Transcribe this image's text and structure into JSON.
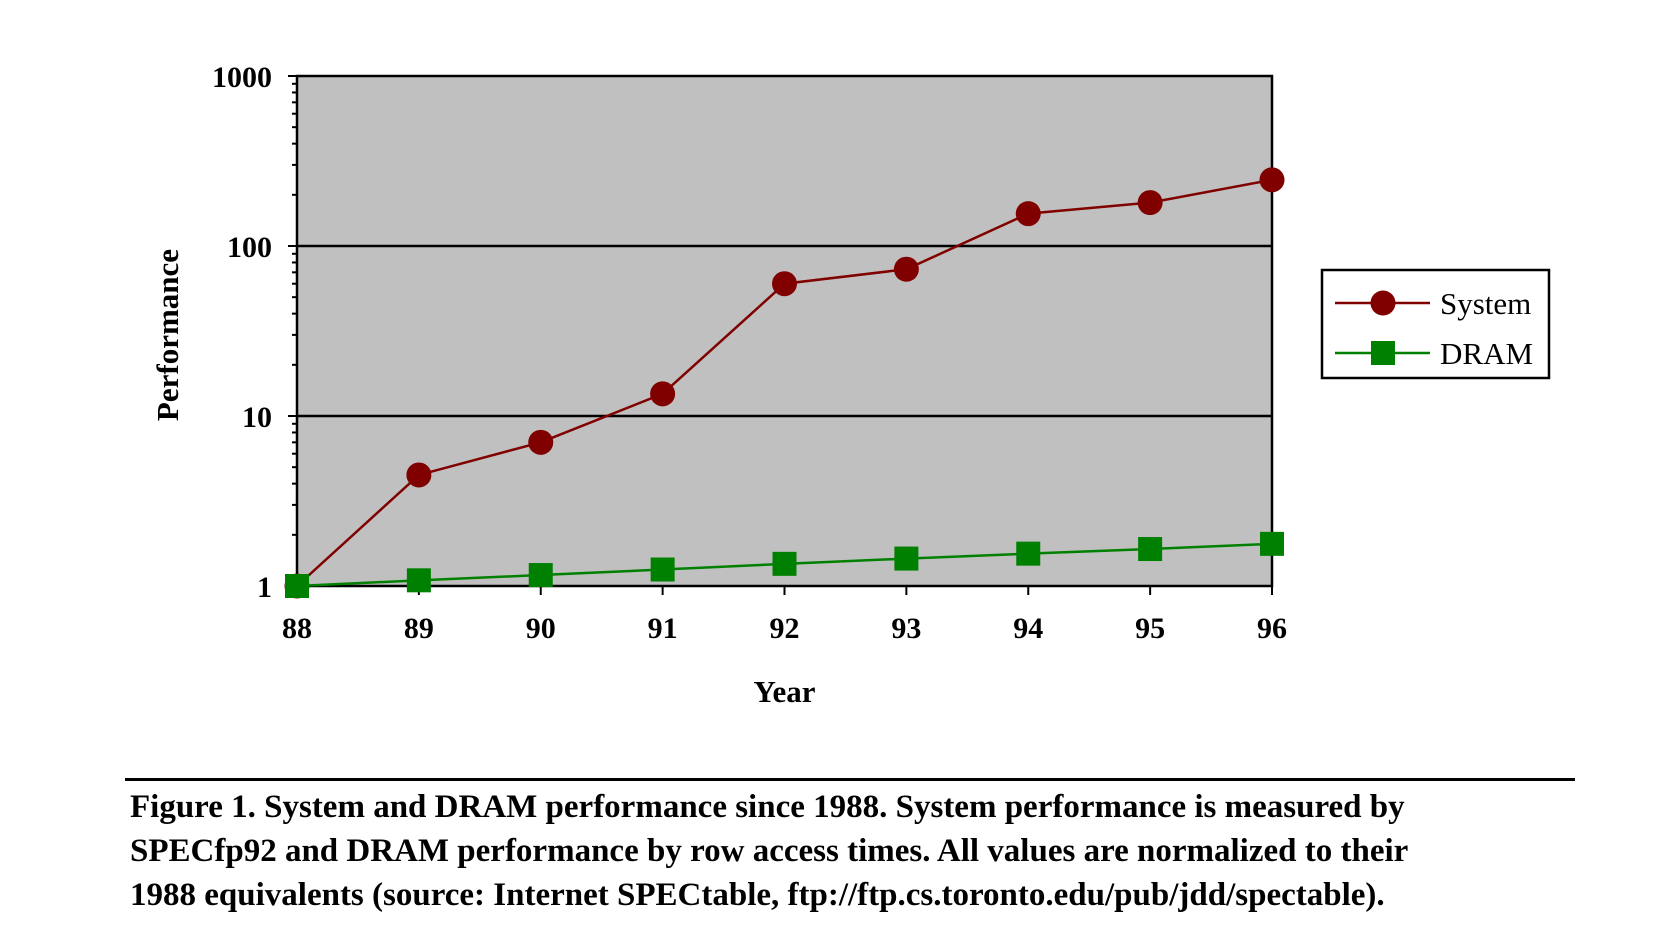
{
  "chart_data": {
    "type": "line",
    "xlabel": "Year",
    "ylabel": "Performance",
    "y_scale": "log",
    "ylim": [
      1,
      1000
    ],
    "y_ticks": [
      "1",
      "10",
      "100",
      "1000"
    ],
    "categories": [
      "88",
      "89",
      "90",
      "91",
      "92",
      "93",
      "94",
      "95",
      "96"
    ],
    "grid": "horizontal major lines at 10 and 100",
    "legend_position": "right",
    "plot_background": "#c0c0c0",
    "series": [
      {
        "name": "System",
        "marker": "circle",
        "color": "#800000",
        "values": [
          1,
          4.5,
          7,
          13.5,
          60,
          73,
          155,
          180,
          245
        ]
      },
      {
        "name": "DRAM",
        "marker": "square",
        "color": "#008000",
        "values": [
          1,
          1.08,
          1.16,
          1.25,
          1.35,
          1.45,
          1.55,
          1.65,
          1.77
        ]
      }
    ]
  },
  "caption": {
    "lines": [
      "Figure 1. System and DRAM performance since 1988.  System performance is measured by",
      "SPECfp92 and DRAM performance by row access times.  All values are normalized to their",
      "1988 equivalents (source: Internet SPECtable, ftp://ftp.cs.toronto.edu/pub/jdd/spectable)."
    ]
  }
}
